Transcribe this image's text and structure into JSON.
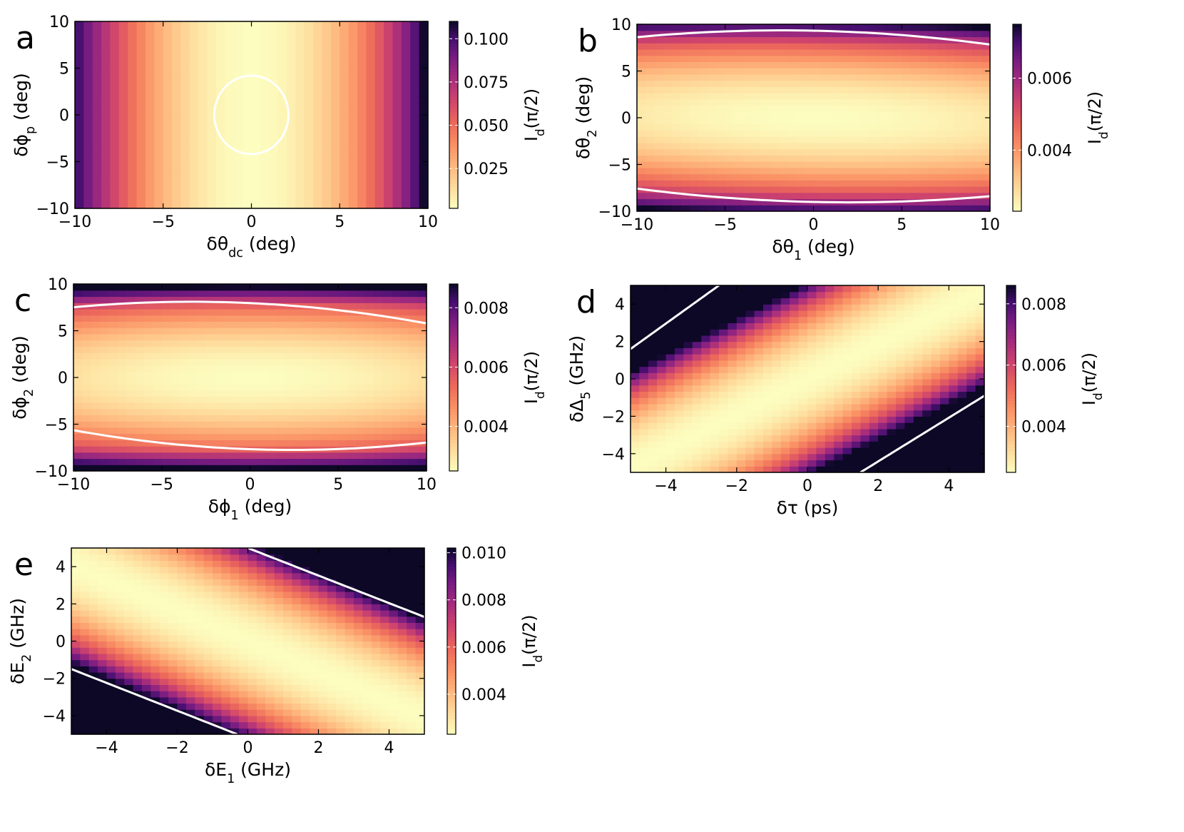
{
  "chart_data": [
    {
      "panel": "a",
      "type": "heatmap",
      "xlabel": "δθ_dc (deg)",
      "ylabel": "δϕ_p (deg)",
      "xlim": [
        -10,
        10
      ],
      "ylim": [
        -10,
        10
      ],
      "xticks": [
        "−10",
        "−5",
        "0",
        "5",
        "10"
      ],
      "yticks": [
        "−10",
        "−5",
        "0",
        "5",
        "10"
      ],
      "colorbar_label": "I_d(π/2)",
      "colorbar_range": [
        0.002,
        0.11
      ],
      "colorbar_ticks": [
        0.025,
        0.05,
        0.075,
        0.1
      ],
      "colorbar_tick_labels": [
        "0.025",
        "0.050",
        "0.075",
        "0.100"
      ],
      "pattern": "quadratic in δθ_dc, nearly flat in δϕ_p; maximum at right edge",
      "contour": "circle centered at (0,0), radius ≈ 2.1 deg in x and 4.2 deg in y"
    },
    {
      "panel": "b",
      "type": "heatmap",
      "xlabel": "δθ_1 (deg)",
      "ylabel": "δθ_2 (deg)",
      "xlim": [
        -10,
        10
      ],
      "ylim": [
        -10,
        10
      ],
      "xticks": [
        "−10",
        "−5",
        "0",
        "5",
        "10"
      ],
      "yticks": [
        "−10",
        "−5",
        "0",
        "5",
        "10"
      ],
      "colorbar_label": "I_d(π/2)",
      "colorbar_range": [
        0.0023,
        0.0075
      ],
      "colorbar_ticks": [
        0.004,
        0.006
      ],
      "colorbar_tick_labels": [
        "0.004",
        "0.006"
      ],
      "pattern": "elliptical basin centered at origin, elongated along δθ_1",
      "contour": "two curved lines near δθ_2 ≈ +9 and δθ_2 ≈ −9"
    },
    {
      "panel": "c",
      "type": "heatmap",
      "xlabel": "δϕ_1 (deg)",
      "ylabel": "δϕ_2 (deg)",
      "xlim": [
        -10,
        10
      ],
      "ylim": [
        -10,
        10
      ],
      "xticks": [
        "−10",
        "−5",
        "0",
        "5",
        "10"
      ],
      "yticks": [
        "−10",
        "−5",
        "0",
        "5",
        "10"
      ],
      "colorbar_label": "I_d(π/2)",
      "colorbar_range": [
        0.0025,
        0.0088
      ],
      "colorbar_ticks": [
        0.004,
        0.006,
        0.008
      ],
      "colorbar_tick_labels": [
        "0.004",
        "0.006",
        "0.008"
      ],
      "pattern": "elliptical basin centered at origin, elongated along δϕ_1",
      "contour": "two curved lines near δϕ_2 ≈ +8 and δϕ_2 ≈ −7.5"
    },
    {
      "panel": "d",
      "type": "heatmap",
      "xlabel": "δτ (ps)",
      "ylabel": "δΔ_5 (GHz)",
      "xlim": [
        -5,
        5
      ],
      "ylim": [
        -5,
        5
      ],
      "xticks": [
        "−4",
        "−2",
        "0",
        "2",
        "4"
      ],
      "yticks": [
        "−4",
        "−2",
        "0",
        "2",
        "4"
      ],
      "colorbar_label": "I_d(π/2)",
      "colorbar_range": [
        0.0025,
        0.0086
      ],
      "colorbar_ticks": [
        0.004,
        0.006,
        0.008
      ],
      "colorbar_tick_labels": [
        "0.004",
        "0.006",
        "0.008"
      ],
      "pattern": "diagonal valley along positive correlation (lower-left to upper-right)",
      "contour": "line from (−5, 1.6) to (−2.5, 5) and line from (1.5, −5) to (5, −0.9)"
    },
    {
      "panel": "e",
      "type": "heatmap",
      "xlabel": "δE_1 (GHz)",
      "ylabel": "δE_2 (GHz)",
      "xlim": [
        -5,
        5
      ],
      "ylim": [
        -5,
        5
      ],
      "xticks": [
        "−4",
        "−2",
        "0",
        "2",
        "4"
      ],
      "yticks": [
        "−4",
        "−2",
        "0",
        "2",
        "4"
      ],
      "colorbar_label": "I_d(π/2)",
      "colorbar_range": [
        0.0023,
        0.0102
      ],
      "colorbar_ticks": [
        0.004,
        0.006,
        0.008,
        0.01
      ],
      "colorbar_tick_labels": [
        "0.004",
        "0.006",
        "0.008",
        "0.010"
      ],
      "pattern": "diagonal valley along negative correlation (upper-left to lower-right)",
      "contour": "line from (0, 5) to (5, 1.3) and line from (−5, −1.5) to (−0.3, −5)"
    }
  ]
}
